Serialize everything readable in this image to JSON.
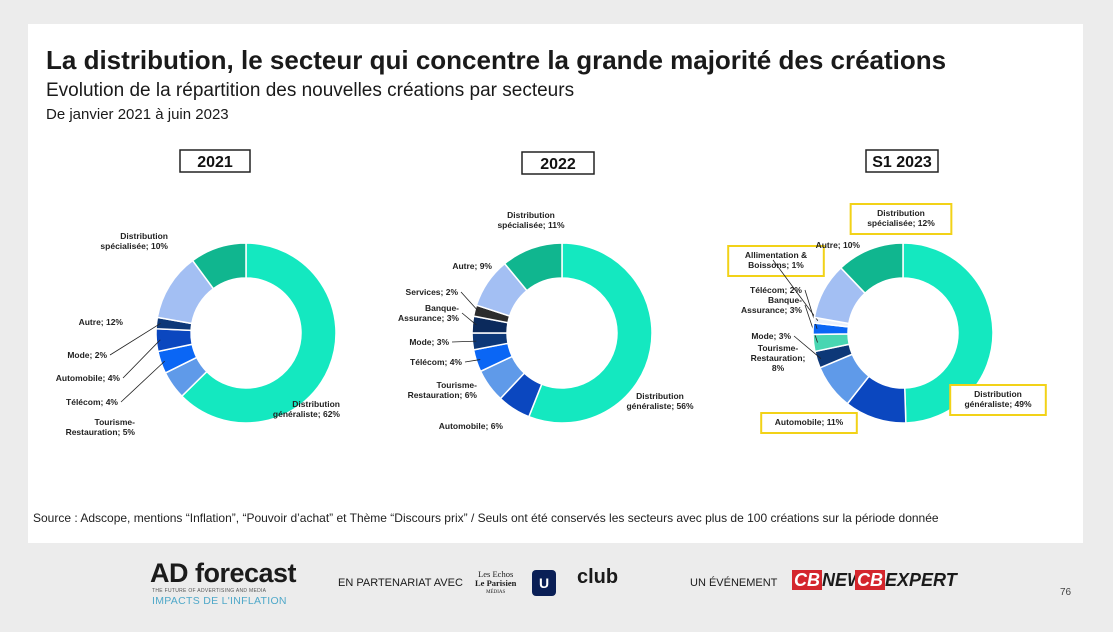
{
  "title": "La distribution, le secteur qui concentre la grande majorité des créations",
  "subtitle": "Evolution de la répartition des nouvelles créations par secteurs",
  "date_range": "De janvier 2021 à juin 2023",
  "source": "Source : Adscope, mentions  “Inflation”, “Pouvoir d’achat” et Thème  “Discours prix” / Seuls ont été conservés les secteurs avec plus de 100 créations sur la période donnée",
  "colors": {
    "Distribution généraliste": "#14e8c0",
    "Distribution spécialisée": "#10b68f",
    "Autre": "#a3bff3",
    "Services": "#2c2c2c",
    "Banque-Assurance": "#0b2a5c",
    "Mode": "#0d3878",
    "Télécom": "#0a66f5",
    "Tourisme-Restauration": "#5f9ae9",
    "Automobile": "#0b47bf",
    "Alimentation & Boissons": "#eaf0fb",
    "Banque-Assurance S1": "#48d6b2",
    "highlight": "#f2d218"
  },
  "chart_data": [
    {
      "type": "pie",
      "title": "2021",
      "slices": [
        {
          "name": "Distribution généraliste",
          "value": 62,
          "label": [
            "Distribution",
            "généraliste; 62%"
          ]
        },
        {
          "name": "Tourisme-Restauration",
          "value": 5,
          "label": [
            "Tourisme-",
            "Restauration; 5%"
          ]
        },
        {
          "name": "Télécom",
          "value": 4,
          "label": [
            "Télécom;  4%"
          ]
        },
        {
          "name": "Automobile",
          "value": 4,
          "label": [
            "Automobile;  4%"
          ]
        },
        {
          "name": "Mode",
          "value": 2,
          "label": [
            "Mode;  2%"
          ]
        },
        {
          "name": "Autre",
          "value": 12,
          "label": [
            "Autre;  12%"
          ]
        },
        {
          "name": "Distribution spécialisée",
          "value": 10,
          "label": [
            "Distribution",
            "spécialisée;  10%"
          ]
        }
      ]
    },
    {
      "type": "pie",
      "title": "2022",
      "slices": [
        {
          "name": "Distribution généraliste",
          "value": 56,
          "label": [
            "Distribution",
            "généraliste; 56%"
          ]
        },
        {
          "name": "Automobile",
          "value": 6,
          "label": [
            "Automobile;  6%"
          ]
        },
        {
          "name": "Tourisme-Restauration",
          "value": 6,
          "label": [
            "Tourisme-",
            "Restauration; 6%"
          ]
        },
        {
          "name": "Télécom",
          "value": 4,
          "label": [
            "Télécom;  4%"
          ]
        },
        {
          "name": "Mode",
          "value": 3,
          "label": [
            "Mode;  3%"
          ]
        },
        {
          "name": "Banque-Assurance",
          "value": 3,
          "label": [
            "Banque-",
            "Assurance;  3%"
          ]
        },
        {
          "name": "Services",
          "value": 2,
          "label": [
            "Services;  2%"
          ]
        },
        {
          "name": "Autre",
          "value": 9,
          "label": [
            "Autre;  9%"
          ]
        },
        {
          "name": "Distribution spécialisée",
          "value": 11,
          "label": [
            "Distribution",
            "spécialisée;  11%"
          ]
        }
      ]
    },
    {
      "type": "pie",
      "title": "S1 2023",
      "slices": [
        {
          "name": "Distribution généraliste",
          "value": 49,
          "label": [
            "Distribution",
            "généraliste; 49%"
          ],
          "highlight": true
        },
        {
          "name": "Automobile",
          "value": 11,
          "label": [
            "Automobile;  11%"
          ],
          "highlight": true
        },
        {
          "name": "Tourisme-Restauration",
          "value": 8,
          "label": [
            "Tourisme-",
            "Restauration;",
            "8%"
          ]
        },
        {
          "name": "Mode",
          "value": 3,
          "label": [
            "Mode;  3%"
          ]
        },
        {
          "name": "Banque-Assurance",
          "value": 3,
          "label": [
            "Banque-",
            "Assurance;  3%"
          ]
        },
        {
          "name": "Télécom",
          "value": 2,
          "label": [
            "Télécom;  2%"
          ]
        },
        {
          "name": "Alimentation & Boissons",
          "value": 1,
          "label": [
            "Allimentation  &",
            "Boissons;  1%"
          ],
          "highlight": true
        },
        {
          "name": "Autre",
          "value": 10,
          "label": [
            "Autre;  10%"
          ]
        },
        {
          "name": "Distribution spécialisée",
          "value": 12,
          "label": [
            "Distribution",
            "spécialisée;  12%"
          ],
          "highlight": true
        }
      ]
    }
  ],
  "footer": {
    "logo": "AD forecast",
    "logo_tag": "THE FUTURE OF ADVERTISING AND MEDIA",
    "logo_sub": "IMPACTS DE L'INFLATION",
    "partner_label": "EN PARTENARIAT AVEC",
    "partner_echos": [
      "Les Echos",
      "Le Parisien",
      "MÉDIAS"
    ],
    "partner_udecam": "U",
    "partner_club": "club",
    "event_label": "UN ÉVÉNEMENT",
    "cbnews_mark": "CB",
    "cbnews_rest": "NEWS",
    "cbexpert_mark": "CB",
    "cbexpert_rest": "EXPERT",
    "page_number": "76"
  }
}
